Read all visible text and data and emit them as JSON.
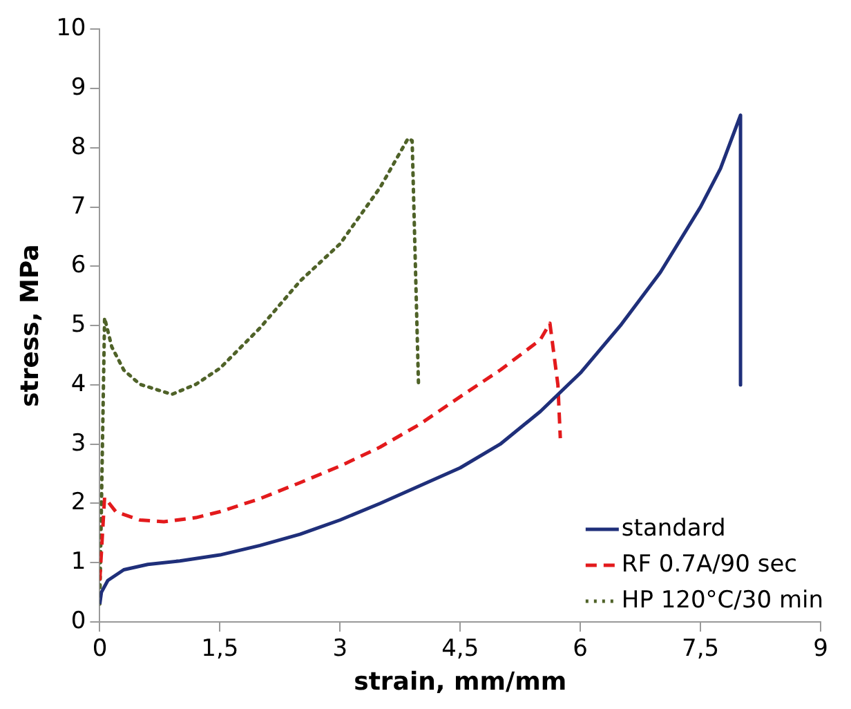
{
  "chart_data": {
    "type": "line",
    "xlabel": "strain, mm/mm",
    "ylabel": "stress, MPa",
    "xlim": [
      0,
      9
    ],
    "ylim": [
      0,
      10
    ],
    "xticks": [
      0,
      {
        "value": 1.5,
        "label": "1,5"
      },
      3,
      {
        "value": 4.5,
        "label": "4,5"
      },
      6,
      {
        "value": 7.5,
        "label": "7,5"
      },
      9
    ],
    "yticks": [
      0,
      1,
      2,
      3,
      4,
      5,
      6,
      7,
      8,
      9,
      10
    ],
    "grid": false,
    "legend": "bottom right",
    "marker": "none",
    "series": [
      {
        "name": "standard",
        "color": "#1f2f7a",
        "line_style": "solid",
        "x": [
          0,
          0.02,
          0.1,
          0.3,
          0.6,
          1,
          1.5,
          2,
          2.5,
          3,
          3.5,
          4,
          4.5,
          5,
          5.5,
          6,
          6.5,
          7,
          7.5,
          7.75,
          8,
          8
        ],
        "values": [
          0.3,
          0.5,
          0.7,
          0.88,
          0.97,
          1.03,
          1.13,
          1.29,
          1.48,
          1.72,
          2.0,
          2.3,
          2.6,
          3.0,
          3.55,
          4.2,
          5.0,
          5.9,
          7.0,
          7.65,
          8.55,
          4.0
        ]
      },
      {
        "name": "RF 0.7A/90 sec",
        "color": "#e31a1c",
        "line_style": "dashed",
        "x": [
          0,
          0.06,
          0.2,
          0.5,
          0.8,
          1.2,
          1.5,
          2,
          2.5,
          3,
          3.5,
          4,
          4.5,
          5,
          5.5,
          5.62,
          5.72,
          5.75
        ],
        "values": [
          0.7,
          2.1,
          1.86,
          1.72,
          1.69,
          1.76,
          1.86,
          2.08,
          2.35,
          2.63,
          2.95,
          3.34,
          3.8,
          4.25,
          4.76,
          5.04,
          4.0,
          3.1
        ]
      },
      {
        "name": "HP 120°C/30 min",
        "color": "#4f6228",
        "line_style": "dotted",
        "x": [
          0,
          0.06,
          0.15,
          0.3,
          0.5,
          0.9,
          1.2,
          1.5,
          2,
          2.5,
          3,
          3.5,
          3.85,
          3.9,
          3.98
        ],
        "values": [
          0.3,
          5.13,
          4.64,
          4.25,
          4.01,
          3.84,
          4.01,
          4.28,
          4.96,
          5.75,
          6.38,
          7.33,
          8.16,
          8.12,
          3.97
        ]
      }
    ]
  }
}
